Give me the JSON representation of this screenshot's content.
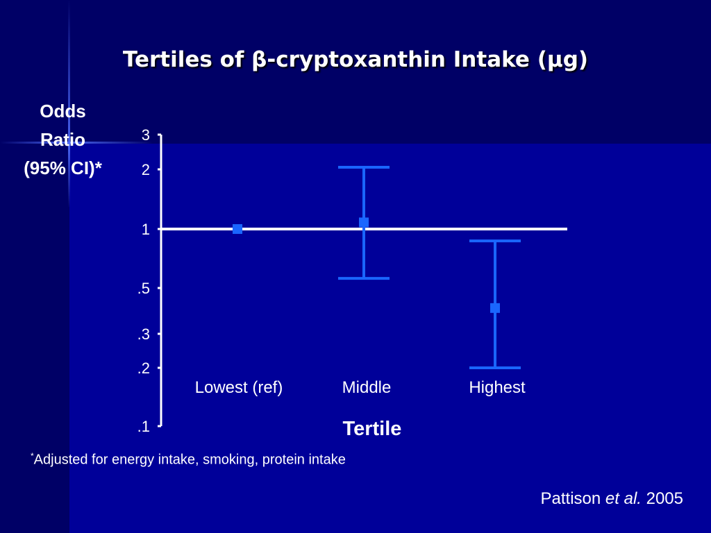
{
  "slide": {
    "title": "Tertiles of β-cryptoxanthin Intake (μg)",
    "footnote_marker": "*",
    "footnote_text": "Adjusted for energy intake, smoking, protein intake",
    "citation_author": "Pattison ",
    "citation_etal": "et al.",
    "citation_year": " 2005"
  },
  "colors": {
    "background": "#000099",
    "marker": "#1a66ff",
    "reference_line": "#ffffff"
  },
  "chart_data": {
    "type": "scatter",
    "title": "Tertiles of β-cryptoxanthin Intake (μg)",
    "ylabel": "Odds\nRatio\n(95% CI)*",
    "xlabel": "Tertile",
    "y_scale": "log",
    "ylim": [
      0.1,
      3
    ],
    "y_ticks": [
      3,
      2,
      1,
      0.5,
      0.3,
      0.2,
      0.1
    ],
    "y_tick_labels": [
      "3",
      "2",
      "1",
      ".5",
      ".3",
      ".2",
      ".1"
    ],
    "reference_line": 1,
    "categories": [
      "Lowest (ref)",
      "Middle",
      "Highest"
    ],
    "values": [
      1.0,
      1.08,
      0.4
    ],
    "ci_lower": [
      null,
      0.56,
      0.2
    ],
    "ci_upper": [
      null,
      2.05,
      0.87
    ]
  }
}
